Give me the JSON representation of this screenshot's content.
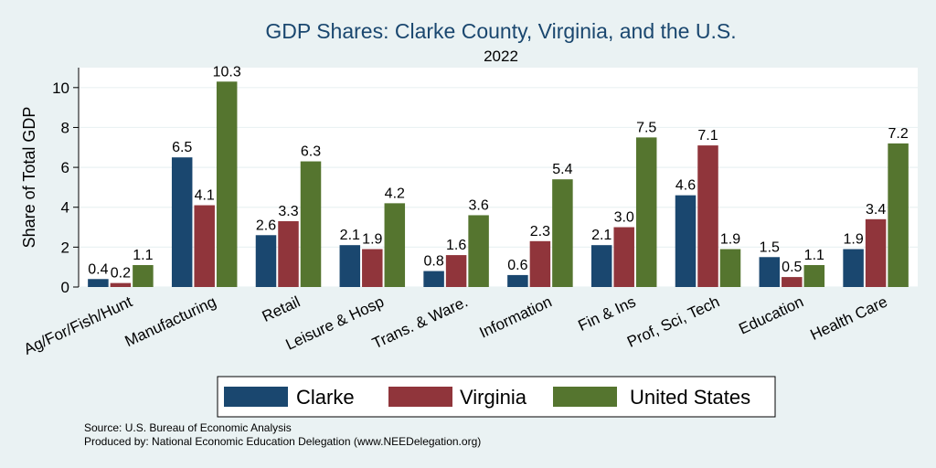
{
  "chart_data": {
    "type": "bar",
    "title": "GDP Shares: Clarke County, Virginia, and the U.S.",
    "subtitle": "2022",
    "ylabel": "Share of Total GDP",
    "xlabel": "",
    "ylim": [
      0,
      11
    ],
    "yticks": [
      0,
      2,
      4,
      6,
      8,
      10
    ],
    "grid": true,
    "legend_position": "bottom",
    "categories": [
      "Ag/For/Fish/Hunt",
      "Manufacturing",
      "Retail",
      "Leisure & Hosp",
      "Trans. & Ware.",
      "Information",
      "Fin & Ins",
      "Prof, Sci, Tech",
      "Education",
      "Health Care"
    ],
    "series": [
      {
        "name": "Clarke",
        "color": "#1a476f",
        "values": [
          0.4,
          6.5,
          2.6,
          2.1,
          0.8,
          0.6,
          2.1,
          4.6,
          1.5,
          1.9
        ],
        "labels": [
          "0.4",
          "6.5",
          "2.6",
          "2.1",
          "0.8",
          "0.6",
          "2.1",
          "4.6",
          "1.5",
          "1.9"
        ]
      },
      {
        "name": "Virginia",
        "color": "#90353b",
        "values": [
          0.2,
          4.1,
          3.3,
          1.9,
          1.6,
          2.3,
          3.0,
          7.1,
          0.5,
          3.4
        ],
        "labels": [
          "0.2",
          "4.1",
          "3.3",
          "1.9",
          "1.6",
          "2.3",
          "3.0",
          "7.1",
          "0.5",
          "3.4"
        ]
      },
      {
        "name": "United States",
        "color": "#55752f",
        "values": [
          1.1,
          10.3,
          6.3,
          4.2,
          3.6,
          5.4,
          7.5,
          1.9,
          1.1,
          7.2
        ],
        "labels": [
          "1.1",
          "10.3",
          "6.3",
          "4.2",
          "3.6",
          "5.4",
          "7.5",
          "1.9",
          "1.1",
          "7.2"
        ]
      }
    ]
  },
  "notes": {
    "source": "Source: U.S. Bureau of Economic Analysis",
    "produced": "Produced by: National Economic Education Delegation (www.NEEDelegation.org)"
  }
}
